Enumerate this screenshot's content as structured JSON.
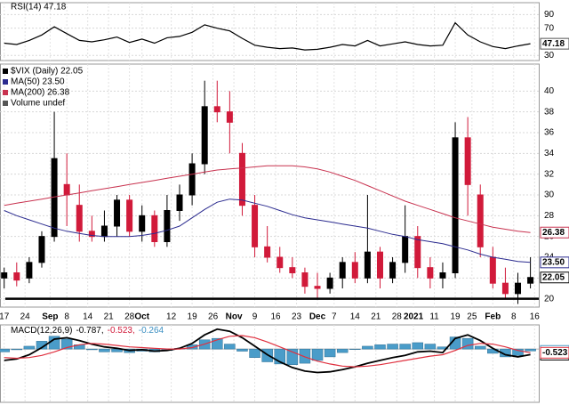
{
  "chart_data": [
    {
      "type": "line",
      "title": "RSI(14) 47.18",
      "x": [
        0,
        3,
        6,
        9,
        12,
        15,
        18,
        21,
        24,
        27,
        30,
        33,
        36,
        39,
        42,
        45,
        48,
        51,
        54,
        57,
        60,
        63,
        66,
        69,
        72,
        75,
        78,
        81,
        84,
        87,
        90,
        93,
        96,
        99,
        102,
        105,
        108,
        111,
        114,
        117,
        120,
        123,
        126
      ],
      "xlim": [
        -1,
        128
      ],
      "ylim": [
        22.5,
        107.5
      ],
      "yticks": [
        90,
        70,
        30
      ],
      "series": [
        {
          "color": "#000000",
          "values": [
            48,
            46,
            52,
            60,
            72,
            62,
            52,
            50,
            53,
            57,
            49,
            54,
            48,
            56,
            58,
            64,
            75,
            70,
            66,
            55,
            45,
            42,
            40,
            41,
            38,
            39,
            42,
            46,
            44,
            52,
            44,
            47,
            50,
            46,
            44,
            45,
            78,
            60,
            50,
            43,
            40,
            44,
            47.18
          ]
        }
      ]
    },
    {
      "type": "candlestick",
      "legend": [
        {
          "text": "$VIX (Daily) 22.05",
          "color": "#000000"
        },
        {
          "text": "MA(50) 23.50",
          "color": "#2b2b8f"
        },
        {
          "text": "MA(200) 26.38",
          "color": "#c8324f"
        },
        {
          "text": "Volume undef",
          "color": "#555555"
        }
      ],
      "x": [
        0,
        3,
        6,
        9,
        12,
        15,
        18,
        21,
        24,
        27,
        30,
        33,
        36,
        39,
        42,
        45,
        48,
        51,
        54,
        57,
        60,
        63,
        66,
        69,
        72,
        75,
        78,
        81,
        84,
        87,
        90,
        93,
        96,
        99,
        102,
        105,
        108,
        111,
        114,
        117,
        120,
        123,
        126
      ],
      "open": [
        22,
        22.5,
        22,
        23.5,
        26,
        31,
        29,
        26.5,
        26,
        27,
        29.5,
        26.5,
        28,
        25.5,
        28.5,
        30,
        33,
        38.5,
        38,
        34,
        29,
        25,
        24,
        23,
        22.5,
        21.2,
        21,
        22,
        23.5,
        22,
        24.5,
        22,
        23.5,
        26,
        23,
        22,
        22.5,
        35.5,
        30,
        24,
        21.5,
        20.5,
        21.5
      ],
      "high": [
        23,
        23.5,
        24,
        26.5,
        38,
        34,
        31,
        28,
        28.5,
        30,
        30,
        29,
        28.5,
        30,
        31,
        34,
        41,
        41,
        40,
        35,
        30,
        27,
        25,
        24,
        23,
        22.5,
        22.5,
        24,
        24.5,
        30,
        25,
        24,
        29,
        27,
        24,
        23.5,
        37,
        37.5,
        31,
        25,
        23,
        22.5,
        24
      ],
      "low": [
        21,
        21.2,
        21.5,
        23,
        25.5,
        27,
        25.5,
        25.5,
        25.5,
        26,
        26,
        25.5,
        25,
        25,
        27.5,
        29,
        32,
        37,
        34,
        28,
        24,
        23.5,
        22.5,
        22,
        20.5,
        20,
        20.5,
        21,
        21.5,
        21.5,
        21,
        21.5,
        22.5,
        22,
        21,
        21,
        22,
        28,
        24,
        21,
        20,
        19.5,
        21
      ],
      "close": [
        22.5,
        21.8,
        23.5,
        26,
        33.5,
        30,
        26.5,
        26,
        27,
        29.5,
        26.5,
        28,
        25.5,
        28.5,
        30,
        33,
        38.5,
        38,
        37,
        29,
        25,
        24,
        23,
        22.5,
        21.2,
        21,
        22,
        23.5,
        22,
        24.5,
        22,
        23.5,
        26,
        23,
        22,
        22.5,
        35.5,
        31,
        25,
        21.5,
        20.5,
        21.5,
        22.05
      ],
      "up_color": "#000000",
      "down_color": "#d11a3a",
      "series": [
        {
          "color": "#2b2b8f",
          "tag": "23.50",
          "values": [
            28.5,
            28,
            27.6,
            27.2,
            26.8,
            26.5,
            26.3,
            26.1,
            26,
            26,
            26,
            26.1,
            26.3,
            26.6,
            27,
            27.8,
            28.6,
            29.3,
            29.6,
            29.5,
            29.2,
            28.9,
            28.5,
            28.1,
            27.8,
            27.6,
            27.4,
            27.2,
            27,
            26.8,
            26.5,
            26.2,
            26,
            25.7,
            25.5,
            25.3,
            25,
            24.7,
            24.3,
            24,
            23.8,
            23.6,
            23.5
          ]
        },
        {
          "color": "#c8324f",
          "tag": "26.38",
          "values": [
            29,
            29.2,
            29.4,
            29.6,
            29.8,
            30,
            30.2,
            30.4,
            30.6,
            30.8,
            31,
            31.2,
            31.4,
            31.6,
            31.8,
            32,
            32.2,
            32.4,
            32.5,
            32.6,
            32.7,
            32.8,
            32.8,
            32.8,
            32.7,
            32.5,
            32.2,
            31.8,
            31.4,
            30.9,
            30.4,
            29.9,
            29.4,
            29,
            28.6,
            28.2,
            27.8,
            27.5,
            27.2,
            26.9,
            26.7,
            26.5,
            26.38
          ]
        }
      ],
      "xlim": [
        -1,
        128
      ],
      "ylim": [
        19.2,
        42.6
      ],
      "yticks": [
        20,
        22,
        24,
        26,
        28,
        30,
        32,
        34,
        36,
        38,
        40
      ],
      "xticks": [
        {
          "value": 0,
          "label": "17"
        },
        {
          "value": 5,
          "label": "24"
        },
        {
          "value": 11,
          "label": "Sep"
        },
        {
          "value": 15,
          "label": "8"
        },
        {
          "value": 20,
          "label": "14"
        },
        {
          "value": 25,
          "label": "21"
        },
        {
          "value": 30,
          "label": "28"
        },
        {
          "value": 33,
          "label": "Oct"
        },
        {
          "value": 40,
          "label": "12"
        },
        {
          "value": 45,
          "label": "19"
        },
        {
          "value": 50,
          "label": "26"
        },
        {
          "value": 55,
          "label": "Nov"
        },
        {
          "value": 60,
          "label": "9"
        },
        {
          "value": 65,
          "label": "16"
        },
        {
          "value": 70,
          "label": "23"
        },
        {
          "value": 75,
          "label": "Dec"
        },
        {
          "value": 79,
          "label": "7"
        },
        {
          "value": 84,
          "label": "14"
        },
        {
          "value": 89,
          "label": "21"
        },
        {
          "value": 94,
          "label": "28"
        },
        {
          "value": 98,
          "label": "2021"
        },
        {
          "value": 103,
          "label": "11"
        },
        {
          "value": 108,
          "label": "19"
        },
        {
          "value": 112,
          "label": "25"
        },
        {
          "value": 117,
          "label": "Feb"
        },
        {
          "value": 122,
          "label": "8"
        },
        {
          "value": 127,
          "label": "16"
        }
      ]
    },
    {
      "type": "macd",
      "legend": [
        {
          "text": "MACD(12,26,9)",
          "color": "#000000"
        },
        {
          "text": "-0.787,",
          "color": "#000000"
        },
        {
          "text": "-0.523,",
          "color": "#d11a3a"
        },
        {
          "text": "-0.264",
          "color": "#3b8fc2"
        }
      ],
      "x": [
        0,
        3,
        6,
        9,
        12,
        15,
        18,
        21,
        24,
        27,
        30,
        33,
        36,
        39,
        42,
        45,
        48,
        51,
        54,
        57,
        60,
        63,
        66,
        69,
        72,
        75,
        78,
        81,
        84,
        87,
        90,
        93,
        96,
        99,
        102,
        105,
        108,
        111,
        114,
        117,
        120,
        123,
        126
      ],
      "xlim": [
        -1,
        128
      ],
      "ylim": [
        -7.5,
        3.4
      ],
      "series": [
        {
          "kind": "bar",
          "color": "#4a9cc9",
          "values": [
            -0.4,
            -0.1,
            0.4,
            1.1,
            1.8,
            1.4,
            0.6,
            -0.1,
            -0.4,
            -0.4,
            -0.5,
            -0.3,
            -0.4,
            -0.2,
            0.1,
            0.6,
            1.3,
            1.5,
            0.7,
            -0.3,
            -1.2,
            -1.8,
            -2.1,
            -2.2,
            -2.0,
            -1.6,
            -1.1,
            -0.5,
            0,
            0.4,
            0.6,
            0.7,
            0.7,
            0.9,
            0.7,
            0.3,
            1.7,
            1.5,
            0.4,
            -0.6,
            -1.1,
            -0.9,
            -0.264
          ]
        },
        {
          "kind": "line",
          "color": "#000000",
          "values": [
            -1.6,
            -1.4,
            -0.8,
            0.2,
            1.4,
            1.6,
            1.2,
            0.7,
            0.3,
            0.1,
            -0.2,
            -0.1,
            -0.3,
            -0.2,
            0.1,
            0.8,
            2.0,
            2.8,
            2.5,
            1.6,
            0.4,
            -0.8,
            -1.8,
            -2.6,
            -3.1,
            -3.3,
            -3.2,
            -2.9,
            -2.5,
            -2.0,
            -1.6,
            -1.2,
            -0.9,
            -0.4,
            -0.3,
            -0.5,
            1.5,
            2.0,
            1.2,
            0.1,
            -0.8,
            -1.1,
            -0.787
          ]
        },
        {
          "kind": "line",
          "color": "#e0303f",
          "values": [
            -1.2,
            -1.3,
            -1.2,
            -0.9,
            -0.4,
            0.2,
            0.6,
            0.8,
            0.7,
            0.5,
            0.3,
            0.2,
            0.1,
            0,
            0,
            0.2,
            0.7,
            1.3,
            1.8,
            1.9,
            1.6,
            1.0,
            0.3,
            -0.4,
            -1.1,
            -1.7,
            -2.1,
            -2.4,
            -2.5,
            -2.4,
            -2.2,
            -1.9,
            -1.6,
            -1.3,
            -1.0,
            -0.8,
            -0.2,
            0.5,
            0.8,
            0.7,
            0.3,
            -0.2,
            -0.523
          ]
        }
      ]
    }
  ]
}
